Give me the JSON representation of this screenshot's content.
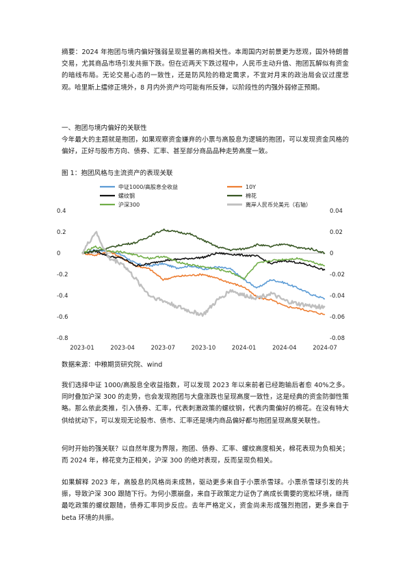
{
  "summary": "摘要：2024 年抱团与境内偏好强弱呈现显著的高相关性。本周国内对前景更为悲观，国外特朗普交易，尤其商品市场引发共振下跌。但在近两天下跌过程中，人民币主动升值、抱团瓦解似有资金的暗线布局。无论交易心态的一致性，还是防风险的稳定需求，不宜对月末的政治局会议过度悲观。哈里斯上擂修正境外，8 月内外资产均可能有所反弹，以阶段性的内强外弱修正预期。",
  "section_heading": "一、抱团与境内偏好的关联性",
  "section_intro": "今年最大的主题就是抱团，如果观察资金嫌弃的小票与高股息为逻辑的抱团，可以发现资金风格的偏好，正好与股市方向、债券、汇率、甚至部分商品品种走势高度一致。",
  "figure_title": "图 1：抱团风格与主流资产的表现关联",
  "source_note": "数据来源：中粮期货研究院、wind",
  "para_1": "我们选择中证 1000/高股息全收益指数，可以发现 2023 年以来前者已经跑输后者愈 40%之多。同时叠加沪深 300 的走势，也会发现抱团与大盘涨跌也呈现高度一致性，这是经典的资金防御性策略。那么依此类推，引入债券、汇率，代表刺激政策的螺纹钢，代表内需偏好的棉花。在没有特大供给扰动下，可以发现无论股市、债市、汇率还是境内商品偏好都与抱团呈现高度关联性。",
  "para_2": "何时开始的强关联？以自然年度为界限，抱团、债券、汇率、螺纹高度相关，棉花表现为负相关；而 2024 年，棉花变为正相关，沪深 300 的绝对表现，反而呈现负相关。",
  "para_3": "如果解释 2023 年，高股息的风格尚未成熟，驱动更多来自于小票杀雪球。小票杀雪球引发的共振，导致沪深 300 跟随下行。为何小票崩盘，来自于政策定力证伪了高成长需要的宽松环境，继而最吃政策的螺纹跟随，债券汇率同步反应。去年严格定义，资金尚未形成强烈抱团，更多来自于 beta 环境的共振。",
  "chart_data": {
    "type": "line",
    "title": "",
    "xlabel": "",
    "ylabel": "",
    "x_ticks": [
      "2023-01",
      "2023-04",
      "2023-07",
      "2023-10",
      "2024-01",
      "2024-04",
      "2024-07"
    ],
    "x": [
      "2023-01",
      "2023-02",
      "2023-03",
      "2023-04",
      "2023-05",
      "2023-06",
      "2023-07",
      "2023-08",
      "2023-09",
      "2023-10",
      "2023-11",
      "2023-12",
      "2024-01",
      "2024-02",
      "2024-03",
      "2024-04",
      "2024-05",
      "2024-06",
      "2024-07"
    ],
    "left_axis": {
      "range": [
        -0.8,
        0.4
      ],
      "ticks": [
        "0.4",
        "0.2",
        "0",
        "-0.2",
        "-0.4",
        "-0.6",
        "-0.8"
      ]
    },
    "right_axis": {
      "range": [
        -0.08,
        0.04
      ],
      "ticks": [
        "0.04",
        "0.02",
        "0",
        "-0.02",
        "-0.04",
        "-0.06",
        "-0.08"
      ]
    },
    "legend_position": "top",
    "series": [
      {
        "name": "中证1000/高股息全收益",
        "color": "#5b9bd5",
        "axis": "left",
        "width": 1.6,
        "values": [
          0.0,
          0.03,
          0.02,
          -0.02,
          -0.1,
          -0.12,
          -0.1,
          -0.14,
          -0.12,
          -0.15,
          -0.13,
          -0.15,
          -0.25,
          -0.33,
          -0.25,
          -0.28,
          -0.33,
          -0.39,
          -0.43
        ]
      },
      {
        "name": "10Y",
        "color": "#ed7d31",
        "axis": "left",
        "width": 1.6,
        "values": [
          0.0,
          -0.02,
          0.02,
          -0.05,
          -0.12,
          -0.15,
          -0.25,
          -0.22,
          -0.21,
          -0.2,
          -0.24,
          -0.28,
          -0.32,
          -0.42,
          -0.44,
          -0.5,
          -0.52,
          -0.55,
          -0.58
        ]
      },
      {
        "name": "螺纹钢",
        "color": "#111111",
        "axis": "left",
        "width": 1.6,
        "values": [
          0.0,
          0.02,
          -0.03,
          -0.05,
          -0.12,
          -0.1,
          -0.07,
          -0.06,
          -0.05,
          -0.04,
          0.0,
          -0.01,
          -0.02,
          -0.03,
          -0.1,
          -0.07,
          -0.09,
          -0.12,
          -0.16
        ]
      },
      {
        "name": "棉花",
        "color": "#375623",
        "axis": "left",
        "width": 1.6,
        "values": [
          0.0,
          0.02,
          0.05,
          0.08,
          0.1,
          0.16,
          0.22,
          0.2,
          0.18,
          0.12,
          0.06,
          0.03,
          0.04,
          0.08,
          0.06,
          0.09,
          0.05,
          0.04,
          0.0
        ]
      },
      {
        "name": "沪深300",
        "color": "#70ad47",
        "axis": "left",
        "width": 1.6,
        "values": [
          0.0,
          0.06,
          0.02,
          0.01,
          -0.02,
          -0.05,
          -0.03,
          -0.08,
          -0.11,
          -0.13,
          -0.15,
          -0.18,
          -0.24,
          -0.1,
          -0.07,
          -0.06,
          -0.05,
          -0.08,
          -0.12
        ]
      },
      {
        "name": "离岸人民币兑美元（右轴）",
        "color": "#bfbfbf",
        "axis": "right",
        "width": 2.4,
        "values": [
          0.0,
          0.02,
          -0.005,
          -0.01,
          -0.025,
          -0.04,
          -0.045,
          -0.05,
          -0.055,
          -0.058,
          -0.045,
          -0.035,
          -0.04,
          -0.042,
          -0.038,
          -0.045,
          -0.048,
          -0.05,
          -0.051
        ]
      }
    ]
  }
}
